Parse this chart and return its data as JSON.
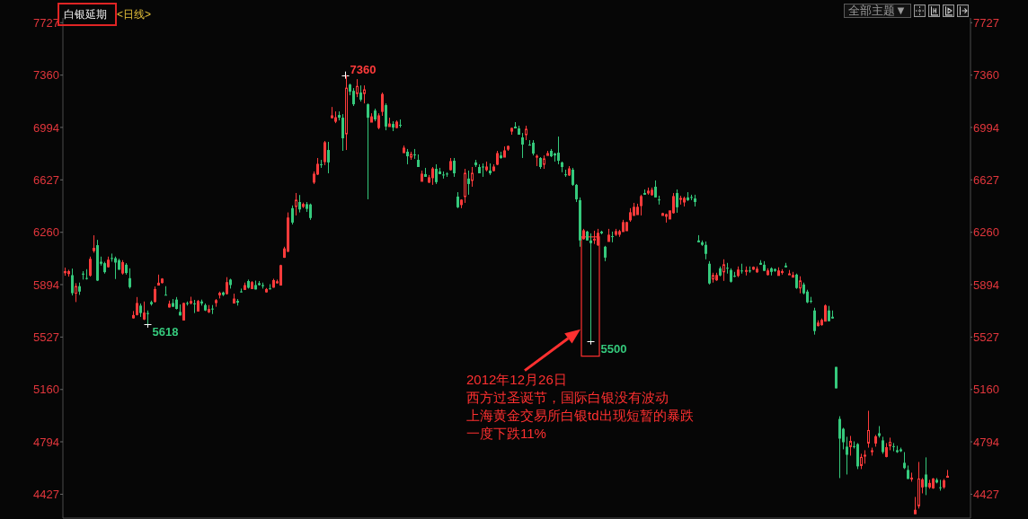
{
  "chart_data": {
    "type": "candlestick",
    "title": "白银延期",
    "subtitle": "<日线>",
    "categories": [
      null,
      null,
      null,
      null,
      null,
      null,
      null,
      null,
      null,
      null,
      null,
      null,
      null,
      null,
      null,
      null,
      null,
      null,
      null,
      null,
      null,
      null,
      null,
      null,
      null,
      null,
      null,
      null,
      null,
      null,
      null,
      null,
      null,
      null,
      null,
      null,
      null,
      null,
      null,
      null,
      null,
      null,
      null,
      null,
      null,
      null,
      null,
      null,
      null,
      null,
      null,
      null,
      null,
      null,
      null,
      null,
      null,
      null,
      null,
      null,
      null,
      null,
      null,
      null,
      null,
      null,
      null,
      null,
      null,
      null,
      null,
      null,
      null,
      null,
      null,
      null,
      null,
      null,
      null,
      null,
      null,
      null,
      null,
      null,
      null,
      null,
      null,
      null,
      null,
      null,
      null,
      null,
      null,
      null,
      null,
      null,
      null,
      null,
      null,
      null,
      null,
      null,
      null,
      null,
      null,
      null,
      null,
      null,
      null,
      null,
      null,
      null,
      null,
      null,
      null,
      null,
      null,
      null,
      null,
      null,
      null,
      null,
      null,
      null,
      null,
      null,
      null,
      null,
      null,
      null,
      null,
      null,
      null,
      null,
      null,
      null,
      null,
      null,
      null,
      null,
      null,
      null,
      null,
      null,
      null,
      null,
      null,
      null,
      null,
      null,
      null,
      null,
      null,
      null,
      null,
      null,
      null,
      null,
      null,
      null,
      null,
      null,
      null,
      null,
      null,
      null,
      null,
      null,
      null,
      null,
      null,
      null,
      null,
      null,
      null,
      null,
      null,
      null,
      null,
      null,
      null,
      null,
      null,
      null,
      null,
      null,
      null,
      null,
      null,
      null,
      null,
      null,
      null,
      null,
      null,
      null,
      null,
      null,
      null,
      null,
      null,
      null,
      null,
      null,
      null,
      null,
      null,
      null,
      null,
      null,
      null,
      null,
      null,
      null,
      null,
      null,
      null,
      null,
      null,
      null,
      null,
      null,
      null,
      null,
      null,
      null,
      null,
      null,
      null,
      null,
      null,
      null,
      null,
      null,
      null,
      null,
      null,
      null,
      null,
      null,
      null,
      null,
      null,
      null,
      null,
      null,
      null,
      null,
      null,
      null,
      null,
      null
    ],
    "ohlc": [
      [
        5977,
        6013,
        5956,
        5985
      ],
      [
        5971,
        5998,
        5950,
        5985
      ],
      [
        5960,
        6006,
        5818,
        5834
      ],
      [
        5834,
        5904,
        5772,
        5881
      ],
      [
        5883,
        5908,
        5822,
        5845
      ],
      [
        5971,
        5988,
        5929,
        5964
      ],
      [
        5939,
        6002,
        5929,
        5935
      ],
      [
        5960,
        6090,
        5950,
        6071
      ],
      [
        6132,
        6239,
        6117,
        6148
      ],
      [
        6170,
        6207,
        5919,
        5922
      ],
      [
        6054,
        6090,
        6027,
        6040
      ],
      [
        6044,
        6054,
        5971,
        5981
      ],
      [
        6019,
        6090,
        6013,
        6065
      ],
      [
        6079,
        6111,
        6054,
        6075
      ],
      [
        6079,
        6090,
        5933,
        6048
      ],
      [
        6065,
        6075,
        5998,
        5998
      ],
      [
        5975,
        6065,
        5964,
        6048
      ],
      [
        6033,
        6044,
        5964,
        5975
      ],
      [
        5939,
        6008,
        5866,
        5876
      ],
      [
        5661,
        5709,
        5657,
        5678
      ],
      [
        5684,
        5807,
        5678,
        5762
      ],
      [
        5747,
        5762,
        5668,
        5695
      ],
      [
        5653,
        5776,
        5646,
        5695
      ],
      [
        5695,
        5713,
        5618,
        5688
      ],
      [
        5772,
        5782,
        5747,
        5757
      ],
      [
        5776,
        5881,
        5768,
        5860
      ],
      [
        5891,
        5964,
        5887,
        5904
      ],
      [
        5908,
        5939,
        5902,
        5933
      ],
      [
        5822,
        5883,
        5818,
        5818
      ],
      [
        5737,
        5782,
        5734,
        5757
      ],
      [
        5765,
        5793,
        5739,
        5739
      ],
      [
        5789,
        5807,
        5720,
        5724
      ],
      [
        5703,
        5755,
        5678,
        5678
      ],
      [
        5646,
        5768,
        5646,
        5762
      ],
      [
        5765,
        5776,
        5747,
        5759
      ],
      [
        5765,
        5809,
        5755,
        5776
      ],
      [
        5762,
        5787,
        5695,
        5757
      ],
      [
        5709,
        5787,
        5705,
        5776
      ],
      [
        5776,
        5789,
        5747,
        5762
      ],
      [
        5751,
        5762,
        5709,
        5713
      ],
      [
        5703,
        5751,
        5695,
        5720
      ],
      [
        5726,
        5751,
        5688,
        5720
      ],
      [
        5768,
        5793,
        5739,
        5782
      ],
      [
        5822,
        5845,
        5797,
        5834
      ],
      [
        5839,
        5845,
        5814,
        5822
      ],
      [
        5831,
        5946,
        5824,
        5908
      ],
      [
        5929,
        5935,
        5866,
        5891
      ],
      [
        5765,
        5831,
        5762,
        5793
      ],
      [
        5780,
        5793,
        5747,
        5768
      ],
      [
        5845,
        5866,
        5839,
        5841
      ],
      [
        5860,
        5908,
        5856,
        5887
      ],
      [
        5919,
        5929,
        5866,
        5872
      ],
      [
        5866,
        5919,
        5866,
        5908
      ],
      [
        5891,
        5922,
        5860,
        5860
      ],
      [
        5904,
        5919,
        5887,
        5891
      ],
      [
        5891,
        5908,
        5866,
        5883
      ],
      [
        5843,
        5870,
        5839,
        5860
      ],
      [
        5866,
        5897,
        5860,
        5862
      ],
      [
        5876,
        5935,
        5872,
        5922
      ],
      [
        5906,
        5929,
        5902,
        5914
      ],
      [
        5891,
        6033,
        5887,
        6027
      ],
      [
        6085,
        6159,
        6081,
        6144
      ],
      [
        6127,
        6399,
        6123,
        6360
      ],
      [
        6429,
        6448,
        6315,
        6328
      ],
      [
        6441,
        6535,
        6378,
        6485
      ],
      [
        6472,
        6521,
        6399,
        6420
      ],
      [
        6441,
        6468,
        6430,
        6455
      ],
      [
        6457,
        6472,
        6403,
        6424
      ],
      [
        6455,
        6461,
        6347,
        6360
      ],
      [
        6611,
        6686,
        6598,
        6667
      ],
      [
        6667,
        6780,
        6661,
        6736
      ],
      [
        6736,
        6767,
        6711,
        6730
      ],
      [
        6755,
        6899,
        6730,
        6887
      ],
      [
        6836,
        6893,
        6673,
        6749
      ],
      [
        7062,
        7137,
        7056,
        7075
      ],
      [
        7037,
        7106,
        7024,
        7062
      ],
      [
        7081,
        7106,
        7043,
        7062
      ],
      [
        7062,
        7087,
        6830,
        6918
      ],
      [
        6949,
        7360,
        6836,
        7269
      ],
      [
        7294,
        7300,
        7219,
        7244
      ],
      [
        7250,
        7269,
        7144,
        7156
      ],
      [
        7231,
        7332,
        7206,
        7281
      ],
      [
        7238,
        7288,
        7175,
        7188
      ],
      [
        7231,
        7288,
        7162,
        7257
      ],
      [
        7156,
        7162,
        6491,
        7062
      ],
      [
        7031,
        7093,
        7031,
        7068
      ],
      [
        7112,
        7125,
        7037,
        7050
      ],
      [
        6993,
        7093,
        6981,
        7075
      ],
      [
        7106,
        7238,
        7075,
        7225
      ],
      [
        7150,
        7162,
        6974,
        7000
      ],
      [
        7000,
        7062,
        7000,
        7018
      ],
      [
        7018,
        7037,
        6968,
        6993
      ],
      [
        6993,
        7043,
        6987,
        7031
      ],
      [
        7012,
        7050,
        6993,
        7006
      ],
      [
        6817,
        6867,
        6817,
        6849
      ],
      [
        6824,
        6843,
        6736,
        6792
      ],
      [
        6786,
        6824,
        6767,
        6805
      ],
      [
        6805,
        6843,
        6774,
        6799
      ],
      [
        6767,
        6805,
        6717,
        6717
      ],
      [
        6617,
        6692,
        6617,
        6667
      ],
      [
        6667,
        6711,
        6648,
        6648
      ],
      [
        6611,
        6661,
        6604,
        6642
      ],
      [
        6642,
        6717,
        6592,
        6704
      ],
      [
        6704,
        6736,
        6598,
        6611
      ],
      [
        6686,
        6711,
        6667,
        6667
      ],
      [
        6664,
        6686,
        6636,
        6658
      ],
      [
        6670,
        6680,
        6648,
        6665
      ],
      [
        6698,
        6780,
        6692,
        6755
      ],
      [
        6761,
        6780,
        6648,
        6673
      ],
      [
        6510,
        6541,
        6429,
        6435
      ],
      [
        6454,
        6491,
        6429,
        6485
      ],
      [
        6510,
        6704,
        6466,
        6673
      ],
      [
        6636,
        6692,
        6523,
        6598
      ],
      [
        6623,
        6717,
        6579,
        6673
      ],
      [
        6749,
        6767,
        6717,
        6730
      ],
      [
        6717,
        6736,
        6673,
        6673
      ],
      [
        6720,
        6742,
        6648,
        6714
      ],
      [
        6698,
        6755,
        6686,
        6717
      ],
      [
        6692,
        6742,
        6661,
        6673
      ],
      [
        6692,
        6736,
        6686,
        6717
      ],
      [
        6736,
        6830,
        6730,
        6811
      ],
      [
        6798,
        6824,
        6774,
        6780
      ],
      [
        6786,
        6861,
        6786,
        6830
      ],
      [
        6842,
        6867,
        6830,
        6861
      ],
      [
        6968,
        6993,
        6943,
        6987
      ],
      [
        7000,
        7031,
        6987,
        6987
      ],
      [
        6987,
        7006,
        6943,
        6943
      ],
      [
        6924,
        6955,
        6780,
        6874
      ],
      [
        6943,
        7006,
        6905,
        6981
      ],
      [
        6874,
        6905,
        6867,
        6867
      ],
      [
        6887,
        6905,
        6798,
        6811
      ],
      [
        6786,
        6805,
        6723,
        6792
      ],
      [
        6780,
        6786,
        6704,
        6717
      ],
      [
        6736,
        6798,
        6704,
        6774
      ],
      [
        6798,
        6830,
        6798,
        6811
      ],
      [
        6830,
        6843,
        6786,
        6792
      ],
      [
        6811,
        6817,
        6755,
        6798
      ],
      [
        6817,
        6930,
        6736,
        6761
      ],
      [
        6749,
        6755,
        6680,
        6717
      ],
      [
        6664,
        6698,
        6648,
        6661
      ],
      [
        6661,
        6723,
        6654,
        6704
      ],
      [
        6698,
        6711,
        6585,
        6592
      ],
      [
        6592,
        6598,
        6472,
        6491
      ],
      [
        6485,
        6504,
        6159,
        6203
      ],
      [
        6215,
        6284,
        6209,
        6271
      ],
      [
        6265,
        6271,
        6203,
        6203
      ],
      [
        6203,
        6253,
        5500,
        6184
      ],
      [
        6206,
        6271,
        6178,
        6212
      ],
      [
        6172,
        6284,
        6165,
        6253
      ],
      [
        6265,
        6271,
        6246,
        6253
      ],
      [
        6159,
        6165,
        6058,
        6083
      ],
      [
        6196,
        6284,
        6196,
        6240
      ],
      [
        6231,
        6265,
        6190,
        6228
      ],
      [
        6246,
        6284,
        6234,
        6265
      ],
      [
        6246,
        6278,
        6228,
        6265
      ],
      [
        6265,
        6347,
        6265,
        6328
      ],
      [
        6271,
        6334,
        6271,
        6328
      ],
      [
        6347,
        6429,
        6334,
        6397
      ],
      [
        6378,
        6466,
        6378,
        6435
      ],
      [
        6384,
        6460,
        6384,
        6435
      ],
      [
        6447,
        6523,
        6378,
        6510
      ],
      [
        6535,
        6560,
        6523,
        6523
      ],
      [
        6535,
        6573,
        6523,
        6548
      ],
      [
        6523,
        6573,
        6516,
        6554
      ],
      [
        6579,
        6623,
        6504,
        6504
      ],
      [
        6488,
        6516,
        6454,
        6485
      ],
      [
        6378,
        6397,
        6378,
        6391
      ],
      [
        6372,
        6391,
        6328,
        6384
      ],
      [
        6353,
        6410,
        6353,
        6410
      ],
      [
        6397,
        6535,
        6391,
        6510
      ],
      [
        6535,
        6560,
        6397,
        6435
      ],
      [
        6491,
        6516,
        6454,
        6497
      ],
      [
        6472,
        6510,
        6441,
        6497
      ],
      [
        6504,
        6541,
        6479,
        6485
      ],
      [
        6507,
        6523,
        6485,
        6501
      ],
      [
        6497,
        6523,
        6441,
        6472
      ],
      [
        6203,
        6240,
        6190,
        6190
      ],
      [
        6190,
        6203,
        6165,
        6172
      ],
      [
        6172,
        6196,
        6071,
        6109
      ],
      [
        6040,
        6058,
        5895,
        5902
      ],
      [
        5933,
        5977,
        5908,
        5958
      ],
      [
        5927,
        5977,
        5920,
        5958
      ],
      [
        6008,
        6021,
        5952,
        5958
      ],
      [
        5983,
        6071,
        5920,
        6033
      ],
      [
        6011,
        6046,
        5971,
        6006
      ],
      [
        5996,
        6008,
        5908,
        5914
      ],
      [
        5955,
        5983,
        5946,
        5950
      ],
      [
        5958,
        6021,
        5946,
        5996
      ],
      [
        5992,
        6040,
        5971,
        5987
      ],
      [
        5987,
        6021,
        5958,
        5992
      ],
      [
        5992,
        6021,
        5977,
        5987
      ],
      [
        6002,
        6021,
        5996,
        6015
      ],
      [
        5983,
        6021,
        5977,
        6002
      ],
      [
        6046,
        6065,
        6033,
        6033
      ],
      [
        6033,
        6058,
        5990,
        5990
      ],
      [
        5964,
        6008,
        5958,
        5990
      ],
      [
        6008,
        6015,
        5958,
        5983
      ],
      [
        6002,
        6008,
        5983,
        5990
      ],
      [
        5958,
        6015,
        5958,
        5990
      ],
      [
        5980,
        6002,
        5964,
        5984
      ],
      [
        6027,
        6046,
        6015,
        6015
      ],
      [
        5964,
        5996,
        5964,
        5967
      ],
      [
        5946,
        5983,
        5946,
        5958
      ],
      [
        5964,
        5971,
        5864,
        5870
      ],
      [
        5870,
        5952,
        5833,
        5920
      ],
      [
        5895,
        5908,
        5826,
        5833
      ],
      [
        5845,
        5858,
        5764,
        5770
      ],
      [
        5780,
        5808,
        5764,
        5776
      ],
      [
        5713,
        5732,
        5544,
        5569
      ],
      [
        5607,
        5644,
        5601,
        5625
      ],
      [
        5613,
        5657,
        5607,
        5644
      ],
      [
        5638,
        5755,
        5638,
        5745
      ],
      [
        5713,
        5745,
        5638,
        5638
      ],
      [
        5669,
        5713,
        5657,
        5657
      ],
      [
        5318,
        5318,
        5168,
        5168
      ],
      [
        4954,
        4973,
        4540,
        4816
      ],
      [
        4885,
        4892,
        4741,
        4791
      ],
      [
        4760,
        4829,
        4565,
        4703
      ],
      [
        4760,
        4835,
        4697,
        4797
      ],
      [
        4763,
        4797,
        4747,
        4758
      ],
      [
        4778,
        4785,
        4603,
        4622
      ],
      [
        4628,
        4710,
        4603,
        4685
      ],
      [
        4694,
        4735,
        4641,
        4700
      ],
      [
        4785,
        5011,
        4753,
        4873
      ],
      [
        4725,
        4753,
        4697,
        4731
      ],
      [
        4785,
        4842,
        4760,
        4829
      ],
      [
        4854,
        4904,
        4823,
        4835
      ],
      [
        4804,
        4829,
        4710,
        4722
      ],
      [
        4691,
        4785,
        4685,
        4753
      ],
      [
        4766,
        4823,
        4735,
        4791
      ],
      [
        4763,
        4785,
        4728,
        4758
      ],
      [
        4735,
        4766,
        4716,
        4722
      ],
      [
        4741,
        4753,
        4722,
        4728
      ],
      [
        4647,
        4722,
        4603,
        4610
      ],
      [
        4597,
        4628,
        4534,
        4534
      ],
      [
        4534,
        4578,
        4515,
        4540
      ],
      [
        4290,
        4408,
        4290,
        4315
      ],
      [
        4346,
        4653,
        4327,
        4534
      ],
      [
        4478,
        4540,
        4433,
        4528
      ],
      [
        4565,
        4685,
        4421,
        4478
      ],
      [
        4478,
        4528,
        4465,
        4503
      ],
      [
        4471,
        4540,
        4465,
        4534
      ],
      [
        4528,
        4540,
        4503,
        4509
      ],
      [
        4474,
        4528,
        4452,
        4471
      ],
      [
        4478,
        4534,
        4465,
        4521
      ],
      [
        4546,
        4597,
        4546,
        4553
      ],
      null,
      null,
      null,
      null,
      null,
      null
    ],
    "colors": [
      "#ff3b3b",
      "#ff3b3b",
      "#35c97c",
      "#ff3b3b",
      "#35c97c",
      "#35c97c",
      "#35c97c",
      "#ff3b3b",
      "#ff3b3b",
      "#35c97c",
      "#35c97c",
      "#35c97c",
      "#ff3b3b",
      "#35c97c",
      "#35c97c",
      "#35c97c",
      "#ff3b3b",
      "#35c97c",
      "#35c97c",
      "#ff3b3b",
      "#ff3b3b",
      "#35c97c",
      "#ff3b3b",
      "#35c97c",
      "#35c97c",
      "#ff3b3b",
      "#ff3b3b",
      "#ff3b3b",
      "#35c97c",
      "#ff3b3b",
      "#35c97c",
      "#35c97c",
      "#35c97c",
      "#ff3b3b",
      "#35c97c",
      "#ff3b3b",
      "#35c97c",
      "#ff3b3b",
      "#35c97c",
      "#35c97c",
      "#ff3b3b",
      "#35c97c",
      "#ff3b3b",
      "#ff3b3b",
      "#35c97c",
      "#ff3b3b",
      "#35c97c",
      "#ff3b3b",
      "#35c97c",
      "#35c97c",
      "#ff3b3b",
      "#35c97c",
      "#ff3b3b",
      "#35c97c",
      "#35c97c",
      "#35c97c",
      "#ff3b3b",
      "#35c97c",
      "#ff3b3b",
      "#ff3b3b",
      "#ff3b3b",
      "#ff3b3b",
      "#ff3b3b",
      "#35c97c",
      "#ff3b3b",
      "#35c97c",
      "#ff3b3b",
      "#35c97c",
      "#35c97c",
      "#ff3b3b",
      "#ff3b3b",
      "#35c97c",
      "#ff3b3b",
      "#35c97c",
      "#ff3b3b",
      "#ff3b3b",
      "#35c97c",
      "#35c97c",
      "#ff3b3b",
      "#35c97c",
      "#35c97c",
      "#ff3b3b",
      "#35c97c",
      "#ff3b3b",
      "#35c97c",
      "#ff3b3b",
      "#35c97c",
      "#ff3b3b",
      "#ff3b3b",
      "#35c97c",
      "#ff3b3b",
      "#35c97c",
      "#ff3b3b",
      "#35c97c",
      "#ff3b3b",
      "#35c97c",
      "#ff3b3b",
      "#35c97c",
      "#35c97c",
      "#ff3b3b",
      "#35c97c",
      "#ff3b3b",
      "#ff3b3b",
      "#35c97c",
      "#35c97c",
      "#35c97c",
      "#35c97c",
      "#ff3b3b",
      "#35c97c",
      "#35c97c",
      "#ff3b3b",
      "#ff3b3b",
      "#35c97c",
      "#ff3b3b",
      "#35c97c",
      "#35c97c",
      "#35c97c",
      "#ff3b3b",
      "#35c97c",
      "#ff3b3b",
      "#ff3b3b",
      "#35c97c",
      "#ff3b3b",
      "#ff3b3b",
      "#ff3b3b",
      "#35c97c",
      "#35c97c",
      "#35c97c",
      "#ff3b3b",
      "#35c97c",
      "#35c97c",
      "#ff3b3b",
      "#35c97c",
      "#ff3b3b",
      "#ff3b3b",
      "#35c97c",
      "#35c97c",
      "#35c97c",
      "#35c97c",
      "#35c97c",
      "#ff3b3b",
      "#35c97c",
      "#35c97c",
      "#35c97c",
      "#ff3b3b",
      "#35c97c",
      "#35c97c",
      "#ff3b3b",
      "#ff3b3b",
      "#35c97c",
      "#35c97c",
      "#ff3b3b",
      "#35c97c",
      "#ff3b3b",
      "#ff3b3b",
      "#ff3b3b",
      "#ff3b3b",
      "#ff3b3b",
      "#ff3b3b",
      "#ff3b3b",
      "#ff3b3b",
      "#35c97c",
      "#ff3b3b",
      "#ff3b3b",
      "#35c97c",
      "#35c97c",
      "#ff3b3b",
      "#ff3b3b",
      "#ff3b3b",
      "#ff3b3b",
      "#35c97c",
      "#ff3b3b",
      "#ff3b3b",
      "#35c97c",
      "#35c97c",
      "#35c97c",
      "#35c97c",
      "#35c97c",
      "#35c97c",
      "#35c97c",
      "#ff3b3b",
      "#ff3b3b",
      "#35c97c",
      "#ff3b3b",
      "#35c97c",
      "#35c97c",
      "#35c97c",
      "#ff3b3b",
      "#35c97c",
      "#ff3b3b",
      "#35c97c",
      "#ff3b3b",
      "#ff3b3b",
      "#35c97c",
      "#35c97c",
      "#ff3b3b",
      "#35c97c",
      "#35c97c",
      "#ff3b3b",
      "#ff3b3b",
      "#35c97c",
      "#ff3b3b",
      "#ff3b3b",
      "#35c97c",
      "#ff3b3b",
      "#35c97c",
      "#35c97c",
      "#35c97c",
      "#35c97c",
      "#ff3b3b",
      "#ff3b3b",
      "#ff3b3b",
      "#35c97c",
      "#35c97c",
      "#35c97c",
      "#35c97c",
      "#35c97c",
      "#35c97c",
      "#ff3b3b",
      "#35c97c",
      "#35c97c",
      "#ff3b3b",
      "#ff3b3b",
      "#ff3b3b",
      "#ff3b3b",
      "#ff3b3b",
      "#35c97c",
      "#35c97c",
      "#ff3b3b",
      "#ff3b3b",
      "#35c97c",
      "#35c97c",
      "#35c97c",
      "#35c97c",
      "#35c97c",
      "#ff3b3b",
      "#ff3b3b",
      "#ff3b3b",
      "#ff3b3b",
      "#35c97c",
      "#ff3b3b",
      "#ff3b3b",
      "#35c97c",
      "#35c97c",
      "#ff3b3b",
      "#ff3b3b",
      null,
      null,
      null,
      null,
      null,
      null
    ],
    "value_labels": [
      null,
      null,
      null,
      null,
      null,
      null,
      null,
      null,
      null,
      null,
      null,
      null,
      null,
      null,
      null,
      null,
      null,
      null,
      null,
      null,
      null,
      null,
      null,
      "5618",
      null,
      null,
      null,
      null,
      null,
      null,
      null,
      null,
      null,
      null,
      null,
      null,
      null,
      null,
      null,
      null,
      null,
      null,
      null,
      null,
      null,
      null,
      null,
      null,
      null,
      null,
      null,
      null,
      null,
      null,
      null,
      null,
      null,
      null,
      null,
      null,
      null,
      null,
      null,
      null,
      null,
      null,
      null,
      null,
      null,
      null,
      null,
      null,
      null,
      null,
      null,
      null,
      null,
      null,
      "7360",
      null,
      null,
      null,
      null,
      null,
      null,
      null,
      null,
      null,
      null,
      null,
      null,
      null,
      null,
      null,
      null,
      null,
      null,
      null,
      null,
      null,
      null,
      null,
      null,
      null,
      null,
      null,
      null,
      null,
      null,
      null,
      null,
      null,
      null,
      null,
      null,
      null,
      null,
      null,
      null,
      null,
      null,
      null,
      null,
      null,
      null,
      null,
      null,
      null,
      null,
      null,
      null,
      null,
      null,
      null,
      null,
      null,
      null,
      null,
      null,
      null,
      null,
      null,
      null,
      null,
      null,
      null,
      "5500",
      null,
      null,
      null,
      null,
      null,
      null,
      null,
      null,
      null,
      null,
      null,
      null,
      null,
      null,
      null,
      null,
      null,
      null,
      null,
      null,
      null,
      null,
      null,
      null,
      null,
      null,
      null,
      null,
      null,
      null,
      null,
      null,
      null,
      null,
      null,
      null,
      null,
      null,
      null,
      null,
      null,
      null,
      null,
      null,
      null,
      null,
      null,
      null,
      null,
      null,
      null,
      null,
      null,
      null,
      null,
      null,
      null,
      null,
      null,
      null,
      null,
      null,
      null,
      null,
      null,
      null,
      null,
      null,
      null,
      null,
      null,
      null,
      null,
      null,
      null,
      null,
      null,
      null,
      null,
      null,
      null,
      null,
      null,
      null,
      null,
      null,
      null,
      null,
      null,
      null,
      null,
      null,
      null,
      null,
      null,
      null,
      null,
      null,
      null,
      null,
      null,
      null,
      null,
      null,
      null
    ],
    "ylim": [
      4260,
      7760
    ],
    "yticks": [
      4427,
      4794,
      5160,
      5527,
      5894,
      6260,
      6627,
      6994,
      7360,
      7727
    ],
    "y2lim": [
      4260,
      7760
    ],
    "y2ticks": [
      4427,
      4794,
      5160,
      5527,
      5894,
      6260,
      6627,
      6994,
      7360,
      7727
    ],
    "tick_labels": "y",
    "annotations": [
      "2012年12月26日",
      "西方过圣诞节，国际白银没有波动",
      "上海黄金交易所白银td出现短暂的暴跌",
      "一度下跌11%",
      "全部主题▼"
    ]
  }
}
